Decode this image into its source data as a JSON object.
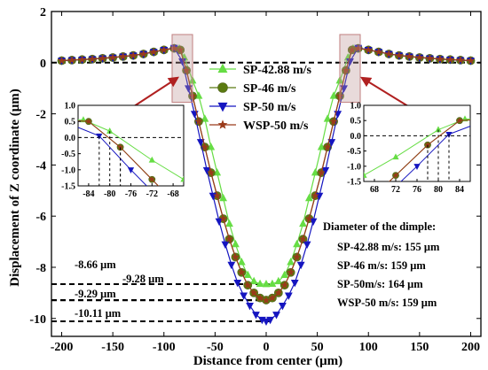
{
  "chart_data": {
    "type": "line",
    "xlabel": "Distance from center (μm)",
    "ylabel": "Displacement of Z coordinate (μm)",
    "xlim": [
      -210,
      210
    ],
    "ylim": [
      -10.7,
      2
    ],
    "x_ticks": [
      -200,
      -150,
      -100,
      -50,
      0,
      50,
      100,
      150,
      200
    ],
    "y_ticks": [
      2,
      0,
      -2,
      -4,
      -6,
      -8,
      -10
    ],
    "grid": false,
    "legend_position": "center-top",
    "series": [
      {
        "name": "SP-42.88 m/s",
        "color": "#66dd44",
        "marker": "triangle-up",
        "points": [
          [
            -200,
            0.08
          ],
          [
            -190,
            0.1
          ],
          [
            -180,
            0.12
          ],
          [
            -170,
            0.14
          ],
          [
            -160,
            0.17
          ],
          [
            -150,
            0.2
          ],
          [
            -140,
            0.24
          ],
          [
            -130,
            0.28
          ],
          [
            -120,
            0.34
          ],
          [
            -110,
            0.42
          ],
          [
            -100,
            0.5
          ],
          [
            -90,
            0.57
          ],
          [
            -85,
            0.55
          ],
          [
            -80,
            0.2
          ],
          [
            -72,
            -0.7
          ],
          [
            -66,
            -1.3
          ],
          [
            -60,
            -2.2
          ],
          [
            -54,
            -3.3
          ],
          [
            -48,
            -4.3
          ],
          [
            -42,
            -5.3
          ],
          [
            -36,
            -6.3
          ],
          [
            -30,
            -7.1
          ],
          [
            -24,
            -7.8
          ],
          [
            -18,
            -8.3
          ],
          [
            -12,
            -8.55
          ],
          [
            -6,
            -8.65
          ],
          [
            0,
            -8.66
          ],
          [
            6,
            -8.65
          ],
          [
            12,
            -8.55
          ],
          [
            18,
            -8.3
          ],
          [
            24,
            -7.8
          ],
          [
            30,
            -7.1
          ],
          [
            36,
            -6.3
          ],
          [
            42,
            -5.3
          ],
          [
            48,
            -4.3
          ],
          [
            54,
            -3.3
          ],
          [
            60,
            -2.2
          ],
          [
            66,
            -1.3
          ],
          [
            72,
            -0.7
          ],
          [
            80,
            0.2
          ],
          [
            85,
            0.55
          ],
          [
            90,
            0.57
          ],
          [
            100,
            0.5
          ],
          [
            110,
            0.42
          ],
          [
            120,
            0.34
          ],
          [
            130,
            0.28
          ],
          [
            140,
            0.24
          ],
          [
            150,
            0.2
          ],
          [
            160,
            0.17
          ],
          [
            170,
            0.14
          ],
          [
            180,
            0.12
          ],
          [
            190,
            0.1
          ],
          [
            200,
            0.08
          ]
        ]
      },
      {
        "name": "SP-46 m/s",
        "color": "#5a7a10",
        "marker": "circle",
        "points": [
          [
            -200,
            0.08
          ],
          [
            -190,
            0.1
          ],
          [
            -180,
            0.12
          ],
          [
            -170,
            0.14
          ],
          [
            -160,
            0.17
          ],
          [
            -150,
            0.2
          ],
          [
            -140,
            0.24
          ],
          [
            -130,
            0.28
          ],
          [
            -120,
            0.34
          ],
          [
            -110,
            0.42
          ],
          [
            -100,
            0.5
          ],
          [
            -90,
            0.56
          ],
          [
            -84,
            0.5
          ],
          [
            -78,
            -0.3
          ],
          [
            -72,
            -1.3
          ],
          [
            -66,
            -2.3
          ],
          [
            -60,
            -3.3
          ],
          [
            -54,
            -4.3
          ],
          [
            -48,
            -5.2
          ],
          [
            -42,
            -6.1
          ],
          [
            -36,
            -6.9
          ],
          [
            -30,
            -7.6
          ],
          [
            -24,
            -8.2
          ],
          [
            -18,
            -8.7
          ],
          [
            -12,
            -9.0
          ],
          [
            -6,
            -9.2
          ],
          [
            0,
            -9.28
          ],
          [
            6,
            -9.2
          ],
          [
            12,
            -9.0
          ],
          [
            18,
            -8.7
          ],
          [
            24,
            -8.2
          ],
          [
            30,
            -7.6
          ],
          [
            36,
            -6.9
          ],
          [
            42,
            -6.1
          ],
          [
            48,
            -5.2
          ],
          [
            54,
            -4.3
          ],
          [
            60,
            -3.3
          ],
          [
            66,
            -2.3
          ],
          [
            72,
            -1.3
          ],
          [
            78,
            -0.3
          ],
          [
            84,
            0.5
          ],
          [
            90,
            0.56
          ],
          [
            100,
            0.5
          ],
          [
            110,
            0.42
          ],
          [
            120,
            0.34
          ],
          [
            130,
            0.28
          ],
          [
            140,
            0.24
          ],
          [
            150,
            0.2
          ],
          [
            160,
            0.17
          ],
          [
            170,
            0.14
          ],
          [
            180,
            0.12
          ],
          [
            190,
            0.1
          ],
          [
            200,
            0.08
          ]
        ]
      },
      {
        "name": "SP-50 m/s",
        "color": "#1515c0",
        "marker": "triangle-down",
        "points": [
          [
            -200,
            0.08
          ],
          [
            -190,
            0.1
          ],
          [
            -180,
            0.12
          ],
          [
            -170,
            0.14
          ],
          [
            -160,
            0.17
          ],
          [
            -150,
            0.2
          ],
          [
            -140,
            0.24
          ],
          [
            -130,
            0.28
          ],
          [
            -120,
            0.34
          ],
          [
            -110,
            0.42
          ],
          [
            -100,
            0.5
          ],
          [
            -90,
            0.58
          ],
          [
            -82,
            0.05
          ],
          [
            -76,
            -1.0
          ],
          [
            -70,
            -2.0
          ],
          [
            -64,
            -3.1
          ],
          [
            -58,
            -4.2
          ],
          [
            -52,
            -5.2
          ],
          [
            -46,
            -6.2
          ],
          [
            -40,
            -7.1
          ],
          [
            -34,
            -7.9
          ],
          [
            -28,
            -8.6
          ],
          [
            -22,
            -9.1
          ],
          [
            -16,
            -9.5
          ],
          [
            -10,
            -9.85
          ],
          [
            -4,
            -10.05
          ],
          [
            0,
            -10.11
          ],
          [
            4,
            -10.05
          ],
          [
            10,
            -9.85
          ],
          [
            16,
            -9.5
          ],
          [
            22,
            -9.1
          ],
          [
            28,
            -8.6
          ],
          [
            34,
            -7.9
          ],
          [
            40,
            -7.1
          ],
          [
            46,
            -6.2
          ],
          [
            52,
            -5.2
          ],
          [
            58,
            -4.2
          ],
          [
            64,
            -3.1
          ],
          [
            70,
            -2.0
          ],
          [
            76,
            -1.0
          ],
          [
            82,
            0.05
          ],
          [
            90,
            0.58
          ],
          [
            100,
            0.5
          ],
          [
            110,
            0.42
          ],
          [
            120,
            0.34
          ],
          [
            130,
            0.28
          ],
          [
            140,
            0.24
          ],
          [
            150,
            0.2
          ],
          [
            160,
            0.17
          ],
          [
            170,
            0.14
          ],
          [
            180,
            0.12
          ],
          [
            190,
            0.1
          ],
          [
            200,
            0.08
          ]
        ]
      },
      {
        "name": "WSP-50 m/s",
        "color": "#9a3a1a",
        "marker": "star",
        "points": [
          [
            -200,
            0.08
          ],
          [
            -190,
            0.1
          ],
          [
            -180,
            0.12
          ],
          [
            -170,
            0.14
          ],
          [
            -160,
            0.17
          ],
          [
            -150,
            0.2
          ],
          [
            -140,
            0.24
          ],
          [
            -130,
            0.28
          ],
          [
            -120,
            0.34
          ],
          [
            -110,
            0.42
          ],
          [
            -100,
            0.5
          ],
          [
            -90,
            0.56
          ],
          [
            -84,
            0.5
          ],
          [
            -78,
            -0.3
          ],
          [
            -72,
            -1.3
          ],
          [
            -66,
            -2.3
          ],
          [
            -60,
            -3.3
          ],
          [
            -54,
            -4.3
          ],
          [
            -48,
            -5.2
          ],
          [
            -42,
            -6.1
          ],
          [
            -36,
            -6.9
          ],
          [
            -30,
            -7.6
          ],
          [
            -24,
            -8.2
          ],
          [
            -18,
            -8.7
          ],
          [
            -12,
            -9.0
          ],
          [
            -6,
            -9.2
          ],
          [
            0,
            -9.29
          ],
          [
            6,
            -9.2
          ],
          [
            12,
            -9.0
          ],
          [
            18,
            -8.7
          ],
          [
            24,
            -8.2
          ],
          [
            30,
            -7.6
          ],
          [
            36,
            -6.9
          ],
          [
            42,
            -6.1
          ],
          [
            48,
            -5.2
          ],
          [
            54,
            -4.3
          ],
          [
            60,
            -3.3
          ],
          [
            66,
            -2.3
          ],
          [
            72,
            -1.3
          ],
          [
            78,
            -0.3
          ],
          [
            84,
            0.5
          ],
          [
            90,
            0.56
          ],
          [
            100,
            0.5
          ],
          [
            110,
            0.42
          ],
          [
            120,
            0.34
          ],
          [
            130,
            0.28
          ],
          [
            140,
            0.24
          ],
          [
            150,
            0.2
          ],
          [
            160,
            0.17
          ],
          [
            170,
            0.14
          ],
          [
            180,
            0.12
          ],
          [
            190,
            0.1
          ],
          [
            200,
            0.08
          ]
        ]
      }
    ],
    "reference_lines": [
      {
        "y": 0,
        "style": "dashed"
      },
      {
        "y": -8.66,
        "label": "-8.66 μm"
      },
      {
        "y": -9.28,
        "label": "-9.28 μm"
      },
      {
        "y": -9.29,
        "label": "-9.29 μm"
      },
      {
        "y": -10.11,
        "label": "-10.11 μm"
      }
    ],
    "annotation": {
      "title": "Diameter of the dimple:",
      "lines": [
        "SP-42.88 m/s: 155 μm",
        "SP-46 m/s: 159 μm",
        "SP-50m/s: 164 μm",
        "WSP-50 m/s: 159 μm"
      ]
    },
    "insets": [
      {
        "position": "left",
        "xlim": [
          -86,
          -66
        ],
        "ylim": [
          -1.5,
          1.0
        ],
        "x_ticks": [
          -84,
          -80,
          -76,
          -72,
          -68
        ],
        "y_ticks": [
          1.0,
          0.5,
          0.0,
          -0.5,
          -1.0,
          -1.5
        ]
      },
      {
        "position": "right",
        "xlim": [
          66,
          86
        ],
        "ylim": [
          -1.5,
          1.0
        ],
        "x_ticks": [
          68,
          72,
          76,
          80,
          84
        ],
        "y_ticks": [
          1.0,
          0.5,
          0.0,
          -0.5,
          -1.0,
          -1.5
        ]
      }
    ]
  }
}
